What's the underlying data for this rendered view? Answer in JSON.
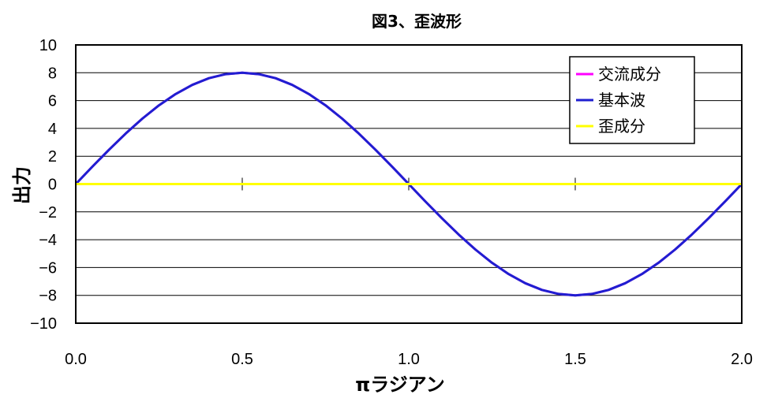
{
  "chart_data": {
    "type": "line",
    "title": "図3、歪波形",
    "xlabel": "πラジアン",
    "ylabel": "出力",
    "xlim": [
      0,
      2
    ],
    "ylim": [
      -10,
      10
    ],
    "x_ticks": [
      0,
      0.5,
      1,
      1.5,
      2
    ],
    "x_tick_labels": [
      "0.0",
      "0.5",
      "1.0",
      "1.5",
      "2.0"
    ],
    "y_ticks": [
      -10,
      -8,
      -6,
      -4,
      -2,
      0,
      2,
      4,
      6,
      8,
      10
    ],
    "y_tick_labels": [
      "−10",
      "−8",
      "−6",
      "−4",
      "−2",
      "0",
      "2",
      "4",
      "6",
      "8",
      "10"
    ],
    "grid": "horizontal",
    "legend_position": "top-right",
    "x": [
      0,
      0.05,
      0.1,
      0.15,
      0.2,
      0.25,
      0.3,
      0.35,
      0.4,
      0.45,
      0.5,
      0.55,
      0.6,
      0.65,
      0.7,
      0.75,
      0.8,
      0.85,
      0.9,
      0.95,
      1.0,
      1.05,
      1.1,
      1.15,
      1.2,
      1.25,
      1.3,
      1.35,
      1.4,
      1.45,
      1.5,
      1.55,
      1.6,
      1.65,
      1.7,
      1.75,
      1.8,
      1.85,
      1.9,
      1.95,
      2.0
    ],
    "series": [
      {
        "name": "交流成分",
        "color": "#ff00ff",
        "values": [
          0,
          1.25,
          2.47,
          3.63,
          4.7,
          5.66,
          6.47,
          7.13,
          7.61,
          7.9,
          8.0,
          7.9,
          7.61,
          7.13,
          6.47,
          5.66,
          4.7,
          3.63,
          2.47,
          1.25,
          0,
          -1.25,
          -2.47,
          -3.63,
          -4.7,
          -5.66,
          -6.47,
          -7.13,
          -7.61,
          -7.9,
          -8.0,
          -7.9,
          -7.61,
          -7.13,
          -6.47,
          -5.66,
          -4.7,
          -3.63,
          -2.47,
          -1.25,
          0
        ]
      },
      {
        "name": "基本波",
        "color": "#1f1fd0",
        "values": [
          0,
          1.25,
          2.47,
          3.63,
          4.7,
          5.66,
          6.47,
          7.13,
          7.61,
          7.9,
          8.0,
          7.9,
          7.61,
          7.13,
          6.47,
          5.66,
          4.7,
          3.63,
          2.47,
          1.25,
          0,
          -1.25,
          -2.47,
          -3.63,
          -4.7,
          -5.66,
          -6.47,
          -7.13,
          -7.61,
          -7.9,
          -8.0,
          -7.9,
          -7.61,
          -7.13,
          -6.47,
          -5.66,
          -4.7,
          -3.63,
          -2.47,
          -1.25,
          0
        ]
      },
      {
        "name": "歪成分",
        "color": "#ffff00",
        "values": [
          0,
          0,
          0,
          0,
          0,
          0,
          0,
          0,
          0,
          0,
          0,
          0,
          0,
          0,
          0,
          0,
          0,
          0,
          0,
          0,
          0,
          0,
          0,
          0,
          0,
          0,
          0,
          0,
          0,
          0,
          0,
          0,
          0,
          0,
          0,
          0,
          0,
          0,
          0,
          0,
          0
        ]
      }
    ]
  }
}
